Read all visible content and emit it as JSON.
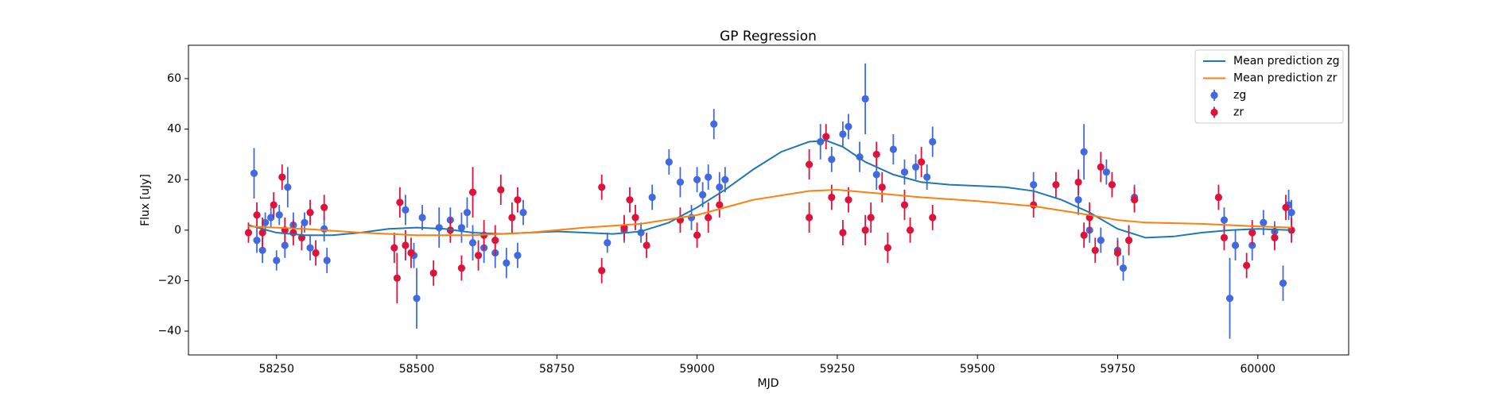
{
  "chart_data": {
    "type": "errorbar",
    "title": "GP Regression",
    "x_label": "MJD",
    "y_label": "Flux [uJy]",
    "xlim": [
      58093,
      60162
    ],
    "ylim": [
      -49.4,
      73.2
    ],
    "xticks": [
      58250,
      58500,
      58750,
      59000,
      59250,
      59500,
      59750,
      60000
    ],
    "yticks": [
      {
        "value": -40,
        "label": "−40"
      },
      {
        "value": -20,
        "label": "−20"
      },
      0,
      20,
      40,
      60
    ],
    "grid": false,
    "legend": "upper right",
    "series": [
      {
        "name": "Mean prediction zg",
        "type": "line",
        "color": "#1f77b4",
        "x": [
          58200,
          58250,
          58300,
          58350,
          58400,
          58450,
          58500,
          58550,
          58600,
          58650,
          58700,
          58750,
          58800,
          58850,
          58900,
          58950,
          59000,
          59050,
          59100,
          59150,
          59200,
          59230,
          59260,
          59300,
          59350,
          59400,
          59450,
          59500,
          59550,
          59600,
          59650,
          59700,
          59750,
          59800,
          59850,
          59900,
          59950,
          60000,
          60060
        ],
        "values": [
          2,
          -1,
          -2,
          -2,
          -1,
          0.5,
          1,
          0.5,
          -1,
          -1.5,
          -1,
          -0.5,
          -1,
          -1.5,
          -0.5,
          3,
          9,
          16,
          24,
          31,
          35,
          35.5,
          33,
          27,
          22,
          19,
          18,
          17.5,
          17,
          15.5,
          12,
          7,
          0.5,
          -3,
          -2.5,
          -1,
          0,
          0.5,
          0
        ]
      },
      {
        "name": "Mean prediction zr",
        "type": "line",
        "color": "#ff7f0e",
        "x": [
          58200,
          58300,
          58400,
          58500,
          58600,
          58700,
          58800,
          58900,
          59000,
          59100,
          59200,
          59250,
          59300,
          59400,
          59500,
          59600,
          59700,
          59750,
          59800,
          59900,
          60000,
          60060
        ],
        "values": [
          1.5,
          0.5,
          -1,
          -2,
          -2,
          -1,
          1,
          2.5,
          6,
          12,
          15.5,
          16,
          15,
          13,
          11.5,
          9.5,
          6,
          4,
          3,
          2.5,
          1.5,
          1
        ]
      },
      {
        "name": "zg",
        "type": "errorbar",
        "color": "#4169e1",
        "x": [
          58210,
          58215,
          58225,
          58230,
          58240,
          58250,
          58255,
          58265,
          58270,
          58280,
          58300,
          58310,
          58335,
          58340,
          58480,
          58495,
          58500,
          58510,
          58540,
          58560,
          58580,
          58590,
          58600,
          58620,
          58640,
          58660,
          58680,
          58690,
          58840,
          58870,
          58900,
          58920,
          58950,
          58970,
          58990,
          59000,
          59010,
          59020,
          59030,
          59040,
          59050,
          59220,
          59240,
          59260,
          59270,
          59290,
          59300,
          59320,
          59350,
          59370,
          59390,
          59410,
          59420,
          59600,
          59680,
          59690,
          59700,
          59720,
          59730,
          59750,
          59760,
          59780,
          59940,
          59950,
          59960,
          59990,
          60010,
          60030,
          60045,
          60055,
          60060
        ],
        "values": [
          22.5,
          -4,
          -8,
          3,
          5,
          -12,
          6,
          -6,
          17,
          2,
          3,
          -7,
          0.5,
          -12,
          8,
          -10,
          -27,
          5,
          1,
          4,
          1,
          7,
          -5,
          -7,
          -9,
          -13,
          -10,
          7,
          -5,
          0,
          -1,
          13,
          27,
          19,
          5,
          20,
          14,
          21,
          42,
          17,
          20,
          35,
          28,
          38,
          41,
          29,
          52,
          22,
          32,
          23,
          25,
          21,
          35,
          18,
          12,
          31,
          0,
          -4,
          23,
          -8,
          -15,
          13,
          4,
          -27,
          -6,
          -6,
          3,
          -0.5,
          -21,
          10,
          7
        ],
        "errors": [
          10,
          5,
          5,
          4,
          4,
          4,
          4,
          5,
          8,
          5,
          4,
          5,
          5,
          5,
          6,
          5,
          12,
          5,
          8,
          5,
          6,
          6,
          7,
          6,
          6,
          6,
          5,
          5,
          4,
          5,
          4,
          5,
          5,
          6,
          5,
          5,
          5,
          5,
          6,
          6,
          5,
          7,
          5,
          5,
          5,
          6,
          14,
          6,
          6,
          5,
          5,
          5,
          6,
          5,
          6,
          11,
          5,
          5,
          5,
          5,
          5,
          5,
          5,
          16,
          6,
          6,
          5,
          4,
          7,
          6,
          5
        ]
      },
      {
        "name": "zr",
        "type": "errorbar",
        "color": "#dc143c",
        "x": [
          58200,
          58215,
          58225,
          58245,
          58260,
          58265,
          58280,
          58295,
          58310,
          58320,
          58335,
          58460,
          58465,
          58470,
          58480,
          58490,
          58530,
          58560,
          58580,
          58600,
          58610,
          58620,
          58640,
          58650,
          58670,
          58680,
          58830,
          58830,
          58870,
          58880,
          58890,
          58910,
          58970,
          59000,
          59020,
          59040,
          59200,
          59200,
          59230,
          59240,
          59260,
          59270,
          59300,
          59310,
          59320,
          59330,
          59340,
          59370,
          59380,
          59400,
          59420,
          59600,
          59640,
          59680,
          59690,
          59700,
          59710,
          59720,
          59740,
          59750,
          59770,
          59780,
          59930,
          59940,
          59980,
          59990,
          60030,
          60050,
          60060
        ],
        "values": [
          -1,
          6,
          -1,
          10,
          21,
          0,
          -1,
          -3,
          7,
          -9,
          9,
          -7,
          -19,
          11,
          -6,
          -9,
          -17,
          0,
          -15,
          15,
          -10,
          -2,
          -4,
          16,
          5,
          12,
          17,
          -16,
          1,
          12,
          5,
          -6,
          4,
          -2,
          5,
          10,
          26,
          5,
          37,
          13,
          -1,
          12,
          0,
          5,
          30,
          17,
          -7,
          10,
          0,
          27,
          5,
          10,
          18,
          19,
          -2,
          5,
          -8,
          25,
          18,
          -9,
          -4,
          12,
          13,
          -3,
          -14,
          -1,
          -3,
          9,
          0
        ],
        "errors": [
          4,
          5,
          6,
          5,
          5,
          5,
          5,
          5,
          5,
          5,
          5,
          6,
          10,
          6,
          6,
          6,
          5,
          5,
          5,
          10,
          6,
          6,
          6,
          6,
          6,
          5,
          5,
          5,
          5,
          5,
          5,
          5,
          5,
          5,
          6,
          5,
          6,
          6,
          5,
          5,
          5,
          5,
          6,
          6,
          5,
          6,
          6,
          6,
          5,
          6,
          5,
          5,
          5,
          5,
          5,
          6,
          5,
          6,
          5,
          5,
          6,
          5,
          5,
          5,
          5,
          5,
          5,
          5,
          5
        ]
      }
    ]
  }
}
